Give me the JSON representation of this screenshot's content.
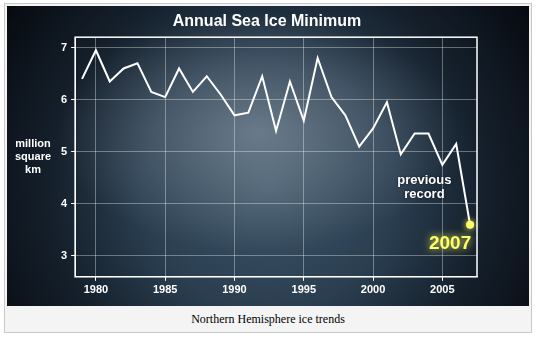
{
  "chart_data": {
    "type": "line",
    "title": "Annual Sea Ice Minimum",
    "y_label": "million square km",
    "x": [
      1979,
      1980,
      1981,
      1982,
      1983,
      1984,
      1985,
      1986,
      1987,
      1988,
      1989,
      1990,
      1991,
      1992,
      1993,
      1994,
      1995,
      1996,
      1997,
      1998,
      1999,
      2000,
      2001,
      2002,
      2003,
      2004,
      2005,
      2006,
      2007
    ],
    "values": [
      6.4,
      6.95,
      6.35,
      6.6,
      6.7,
      6.15,
      6.05,
      6.6,
      6.15,
      6.45,
      6.1,
      5.7,
      5.75,
      6.45,
      5.4,
      6.35,
      5.6,
      6.8,
      6.05,
      5.7,
      5.1,
      5.45,
      5.95,
      4.95,
      5.35,
      5.35,
      4.75,
      5.15,
      3.6
    ],
    "color": "#ffffff",
    "xlim": [
      1978.5,
      2007.5
    ],
    "xticks": [
      1980,
      1985,
      1990,
      1995,
      2000,
      2005
    ],
    "ylim": [
      2.6,
      7.2
    ],
    "yticks": [
      3,
      4,
      5,
      6,
      7
    ],
    "grid": true,
    "annotations": [
      {
        "text": "previous record",
        "x": 2005,
        "color": "#ffffff"
      },
      {
        "text": "2007",
        "x": 2007,
        "color": "#ffff66",
        "marker": "circle"
      }
    ]
  },
  "caption": "Northern Hemisphere ice trends"
}
